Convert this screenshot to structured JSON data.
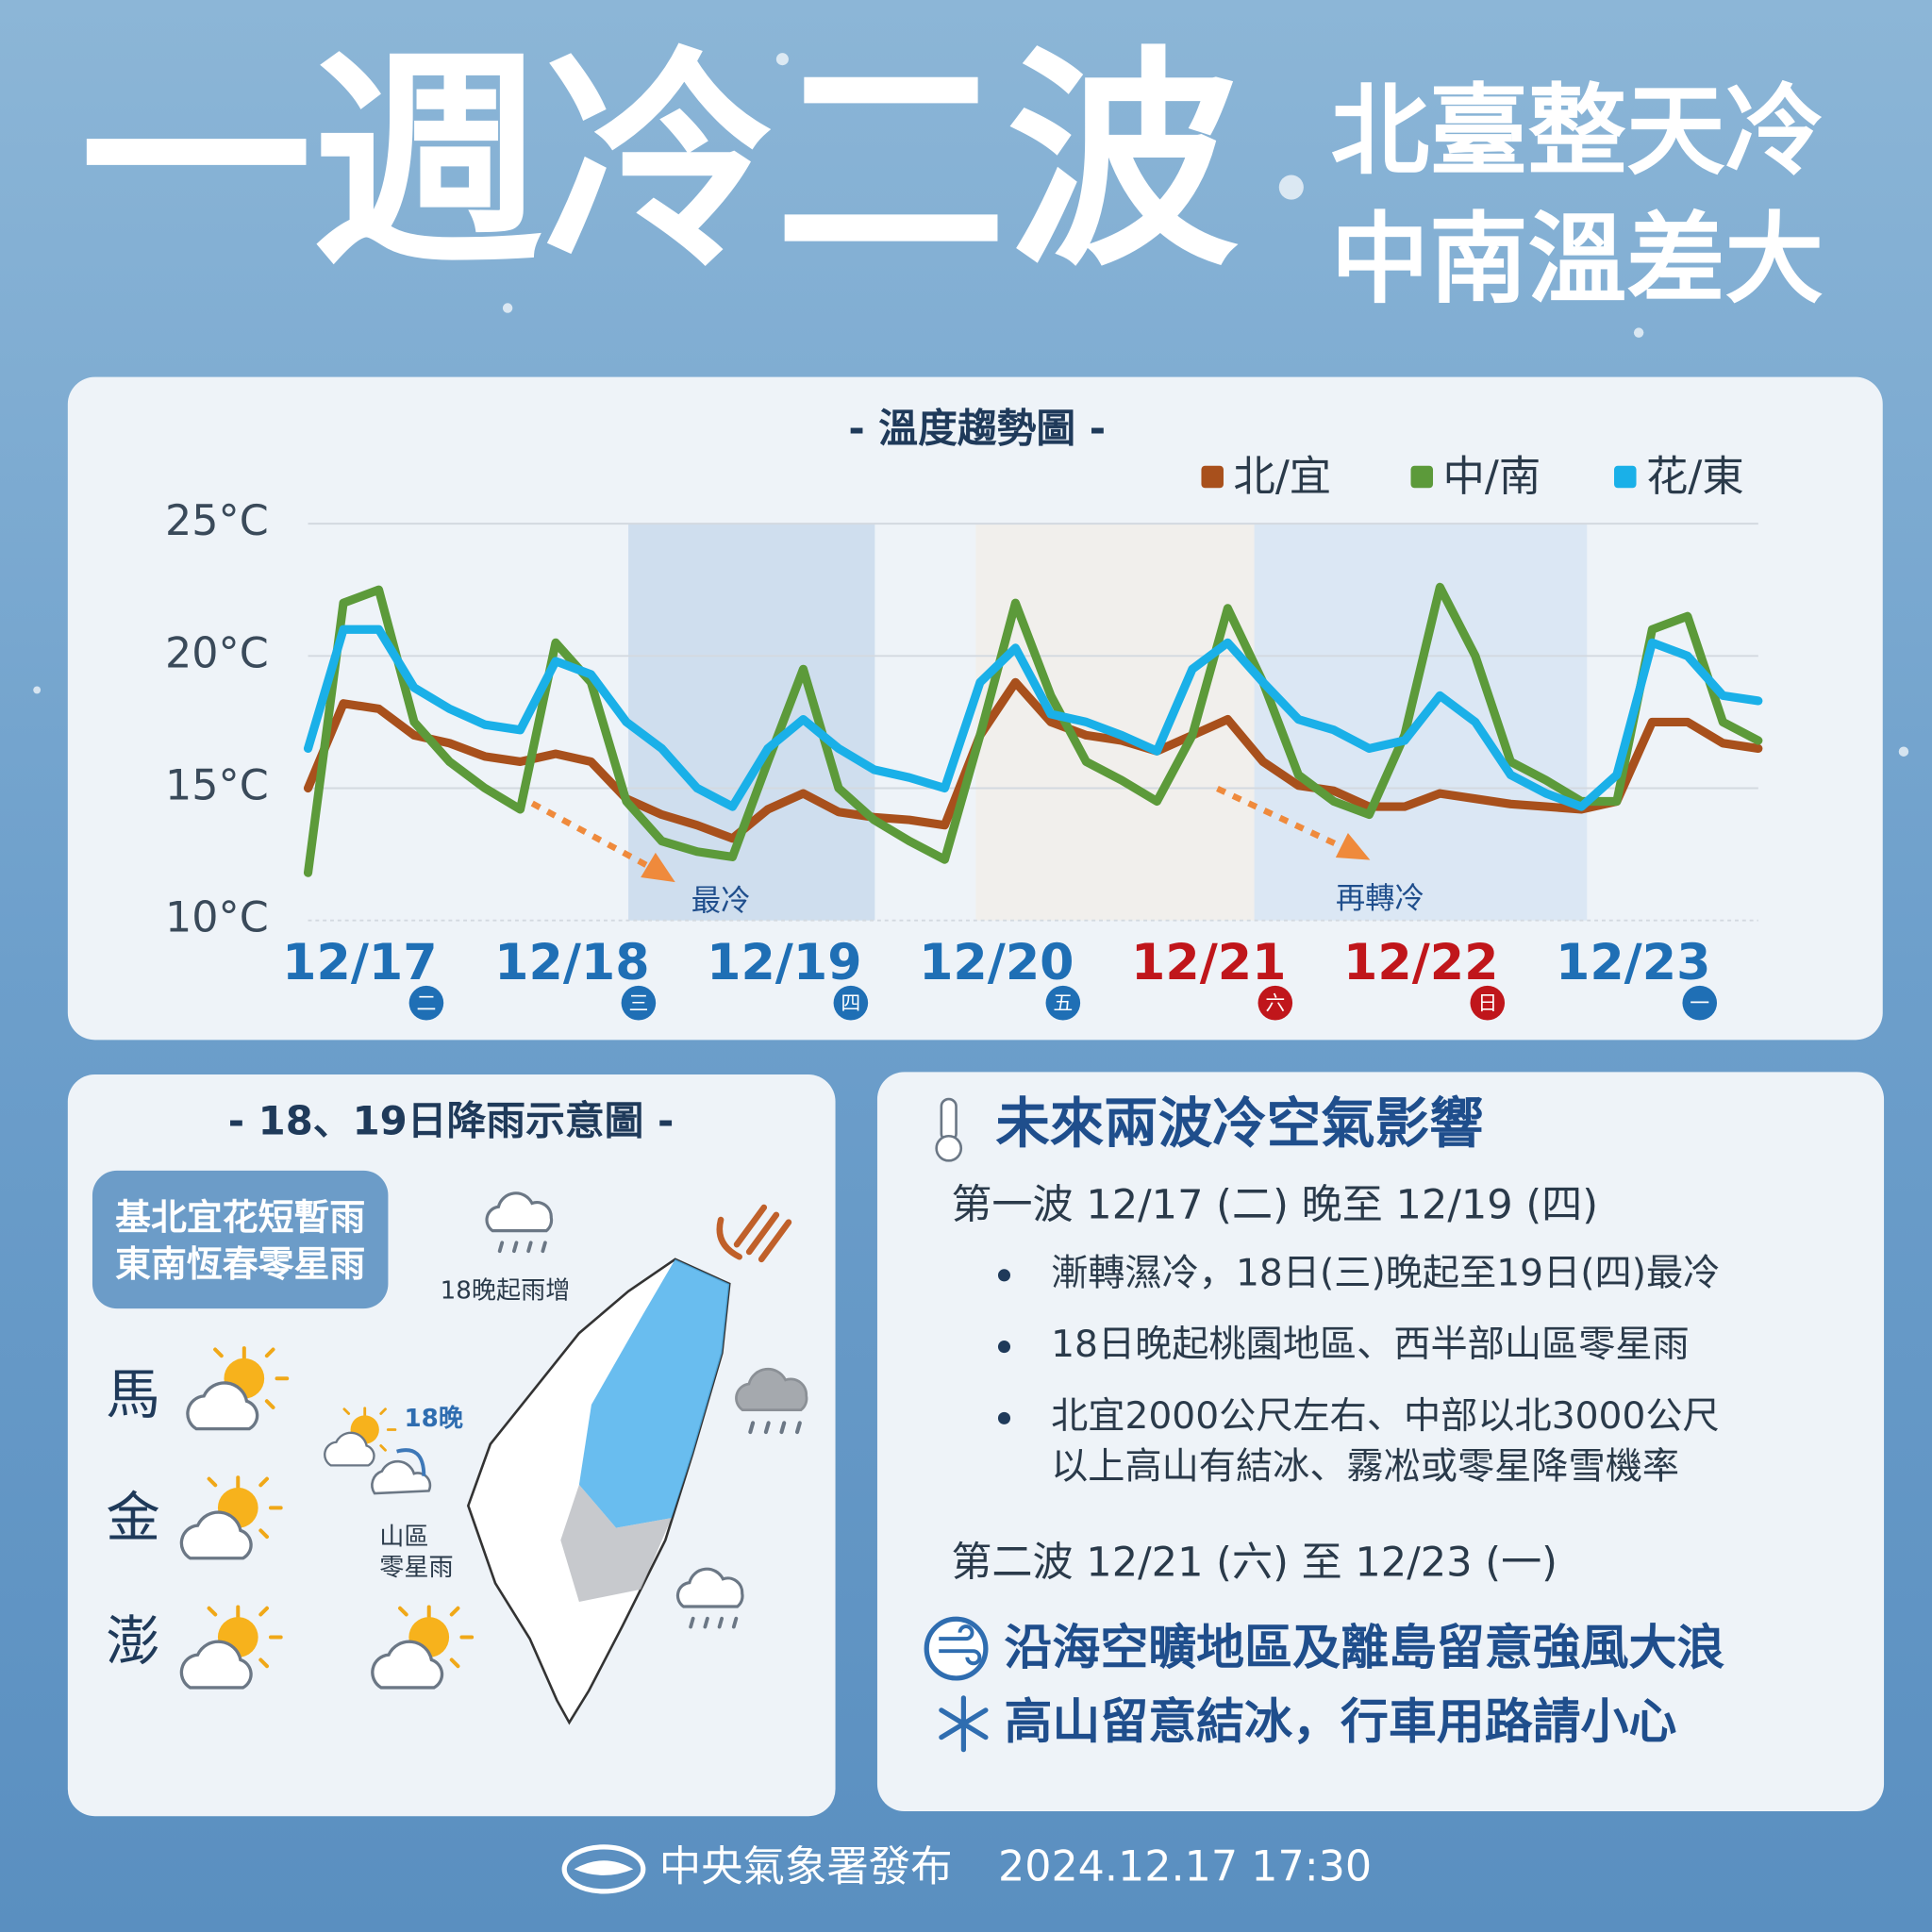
{
  "header": {
    "title": "一週冷二波",
    "subtitle": [
      "北臺整天冷",
      "中南溫差大"
    ]
  },
  "chart_data": {
    "type": "line",
    "title": "- 溫度趨勢圖 -",
    "categories": [
      "12/17",
      null,
      null,
      null,
      null,
      null,
      "12/18",
      null,
      null,
      null,
      null,
      null,
      "12/19",
      null,
      null,
      null,
      null,
      null,
      "12/20",
      null,
      null,
      null,
      null,
      null,
      "12/21",
      null,
      null,
      null,
      null,
      null,
      "12/22",
      null,
      null,
      null,
      null,
      null,
      "12/23",
      null,
      null,
      null,
      null,
      null
    ],
    "weekdays": [
      "二",
      null,
      null,
      null,
      null,
      null,
      "三",
      null,
      null,
      null,
      null,
      null,
      "四",
      null,
      null,
      null,
      null,
      null,
      "五",
      null,
      null,
      null,
      null,
      null,
      "六",
      null,
      null,
      null,
      null,
      null,
      "日",
      null,
      null,
      null,
      null,
      null,
      "一",
      null,
      null,
      null,
      null,
      null
    ],
    "category_colors": [
      "#1f6fb5",
      null,
      null,
      null,
      null,
      null,
      "#1f6fb5",
      null,
      null,
      null,
      null,
      null,
      "#1f6fb5",
      null,
      null,
      null,
      null,
      null,
      "#1f6fb5",
      null,
      null,
      null,
      null,
      null,
      "#c0161b",
      null,
      null,
      null,
      null,
      null,
      "#c0161b",
      null,
      null,
      null,
      null,
      null,
      "#1f6fb5",
      null,
      null,
      null,
      null,
      null
    ],
    "series": [
      {
        "name": "北/宜",
        "color": "#a8501c",
        "values": [
          15.0,
          18.2,
          18.0,
          17.0,
          16.7,
          16.2,
          16.0,
          16.3,
          16.0,
          14.6,
          14.0,
          13.6,
          13.1,
          14.2,
          14.8,
          14.1,
          13.9,
          13.8,
          13.6,
          17.0,
          19.0,
          17.5,
          17.0,
          16.8,
          16.4,
          17.0,
          17.6,
          16.0,
          15.1,
          14.9,
          14.3,
          14.3,
          14.8,
          14.6,
          14.4,
          14.3,
          14.2,
          14.5,
          17.5,
          17.5,
          16.7,
          16.5
        ]
      },
      {
        "name": "中/南",
        "color": "#5c9a3a",
        "values": [
          11.8,
          22.0,
          22.5,
          17.5,
          16.0,
          15.0,
          14.2,
          20.5,
          19.0,
          14.5,
          13.0,
          12.6,
          12.4,
          16.0,
          19.5,
          15.0,
          13.8,
          13.0,
          12.3,
          17.0,
          22.0,
          18.5,
          16.0,
          15.3,
          14.5,
          17.0,
          21.8,
          19.0,
          15.5,
          14.5,
          14.0,
          17.0,
          22.6,
          20.0,
          16.0,
          15.3,
          14.5,
          14.5,
          21.0,
          21.5,
          17.5,
          16.8
        ]
      },
      {
        "name": "花/東",
        "color": "#1ab0e8",
        "values": [
          16.5,
          21.0,
          21.0,
          18.8,
          18.0,
          17.4,
          17.2,
          19.8,
          19.3,
          17.5,
          16.5,
          15.0,
          14.3,
          16.5,
          17.6,
          16.5,
          15.7,
          15.4,
          15.0,
          19.0,
          20.3,
          17.8,
          17.5,
          17.0,
          16.4,
          19.5,
          20.5,
          19.0,
          17.6,
          17.2,
          16.5,
          16.8,
          18.5,
          17.5,
          15.5,
          14.8,
          14.3,
          15.5,
          20.5,
          20.0,
          18.5,
          18.3
        ]
      }
    ],
    "ylim": [
      10,
      25
    ],
    "yticks": [
      {
        "value": 10,
        "label": "10°C"
      },
      {
        "value": 15,
        "label": "15°C"
      },
      {
        "value": 20,
        "label": "20°C"
      },
      {
        "value": 25,
        "label": "25°C"
      }
    ],
    "grid": true,
    "annotations": [
      "最冷",
      "再轉冷"
    ]
  },
  "rain_map": {
    "title": "- 18、19日降雨示意圖 -",
    "box": [
      "基北宜花短暫雨",
      "東南恆春零星雨"
    ],
    "islands": [
      "馬",
      "金",
      "澎"
    ],
    "notes": {
      "north": "18晚起雨增",
      "evening": "18晚",
      "mountain": [
        "山區",
        "零星雨"
      ]
    }
  },
  "impacts": {
    "title": "未來兩波冷空氣影響",
    "wave1": {
      "heading": "第一波 12/17 (二) 晚至 12/19 (四)",
      "bullets": [
        [
          "漸轉濕冷，18日(三)晚起至19日(四)最冷"
        ],
        [
          "18日晚起桃園地區、西半部山區零星雨"
        ],
        [
          "北宜2000公尺左右、中部以北3000公尺",
          "以上高山有結冰、霧凇或零星降雪機率"
        ]
      ]
    },
    "wave2": {
      "heading": "第二波 12/21 (六) 至 12/23 (一)"
    },
    "alerts": [
      "沿海空曠地區及離島留意強風大浪",
      "高山留意結冰，行車用路請小心"
    ]
  },
  "footer": {
    "publisher": "中央氣象署發布",
    "time": "2024.12.17 17:30"
  }
}
